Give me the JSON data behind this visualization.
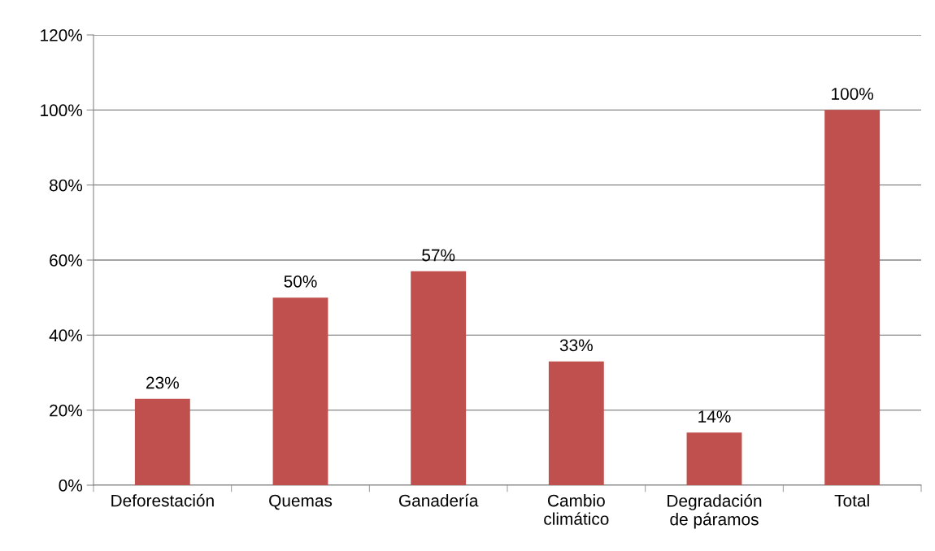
{
  "chart_data": {
    "type": "bar",
    "categories": [
      "Deforestación",
      "Quemas",
      "Ganadería",
      "Cambio\nclimático",
      "Degradación\nde páramos",
      "Total"
    ],
    "values": [
      23,
      50,
      57,
      33,
      14,
      100
    ],
    "value_labels": [
      "23%",
      "50%",
      "57%",
      "33%",
      "14%",
      "100%"
    ],
    "color": "#c0504d",
    "ylim": [
      0,
      120
    ],
    "yticks": [
      {
        "value": 0,
        "label": "0%"
      },
      {
        "value": 20,
        "label": "20%"
      },
      {
        "value": 40,
        "label": "40%"
      },
      {
        "value": 60,
        "label": "60%"
      },
      {
        "value": 80,
        "label": "80%"
      },
      {
        "value": 100,
        "label": "100%"
      },
      {
        "value": 120,
        "label": "120%"
      }
    ],
    "grid": "y",
    "legend": false
  }
}
